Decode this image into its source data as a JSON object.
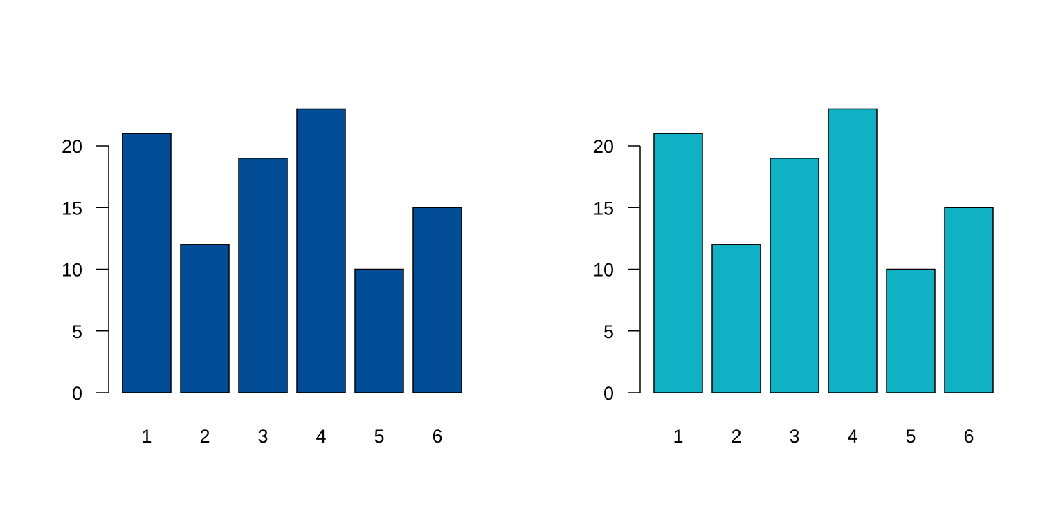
{
  "chart_data": [
    {
      "type": "bar",
      "categories": [
        "1",
        "2",
        "3",
        "4",
        "5",
        "6"
      ],
      "values": [
        21,
        12,
        19,
        23,
        10,
        15
      ],
      "ylim": [
        0,
        23
      ],
      "yticks": [
        "0",
        "5",
        "10",
        "15",
        "20"
      ],
      "bar_color": "#034C96",
      "title": "",
      "xlabel": "",
      "ylabel": ""
    },
    {
      "type": "bar",
      "categories": [
        "1",
        "2",
        "3",
        "4",
        "5",
        "6"
      ],
      "values": [
        21,
        12,
        19,
        23,
        10,
        15
      ],
      "ylim": [
        0,
        23
      ],
      "yticks": [
        "0",
        "5",
        "10",
        "15",
        "20"
      ],
      "bar_color": "#10B1C5",
      "title": "",
      "xlabel": "",
      "ylabel": ""
    }
  ]
}
